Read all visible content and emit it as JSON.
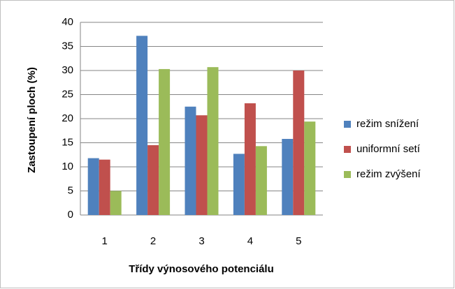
{
  "chart_data": {
    "type": "bar",
    "x_label": "Třídy výnosového potenciálu",
    "y_label": "Zastoupení ploch (%)",
    "categories": [
      "1",
      "2",
      "3",
      "4",
      "5"
    ],
    "series": [
      {
        "name": "režim snížení",
        "color": "#4f81bd",
        "values": [
          11.8,
          37.2,
          22.5,
          12.7,
          15.8
        ]
      },
      {
        "name": "uniformní setí",
        "color": "#c0504d",
        "values": [
          11.5,
          14.5,
          20.7,
          23.2,
          30.0
        ]
      },
      {
        "name": "režim zvýšení",
        "color": "#9bbb59",
        "values": [
          5.0,
          30.3,
          30.7,
          14.3,
          19.4
        ]
      }
    ],
    "ylim": [
      0,
      40
    ],
    "yticks": [
      0,
      5,
      10,
      15,
      20,
      25,
      30,
      35,
      40
    ],
    "grid": true,
    "legend": "right"
  }
}
